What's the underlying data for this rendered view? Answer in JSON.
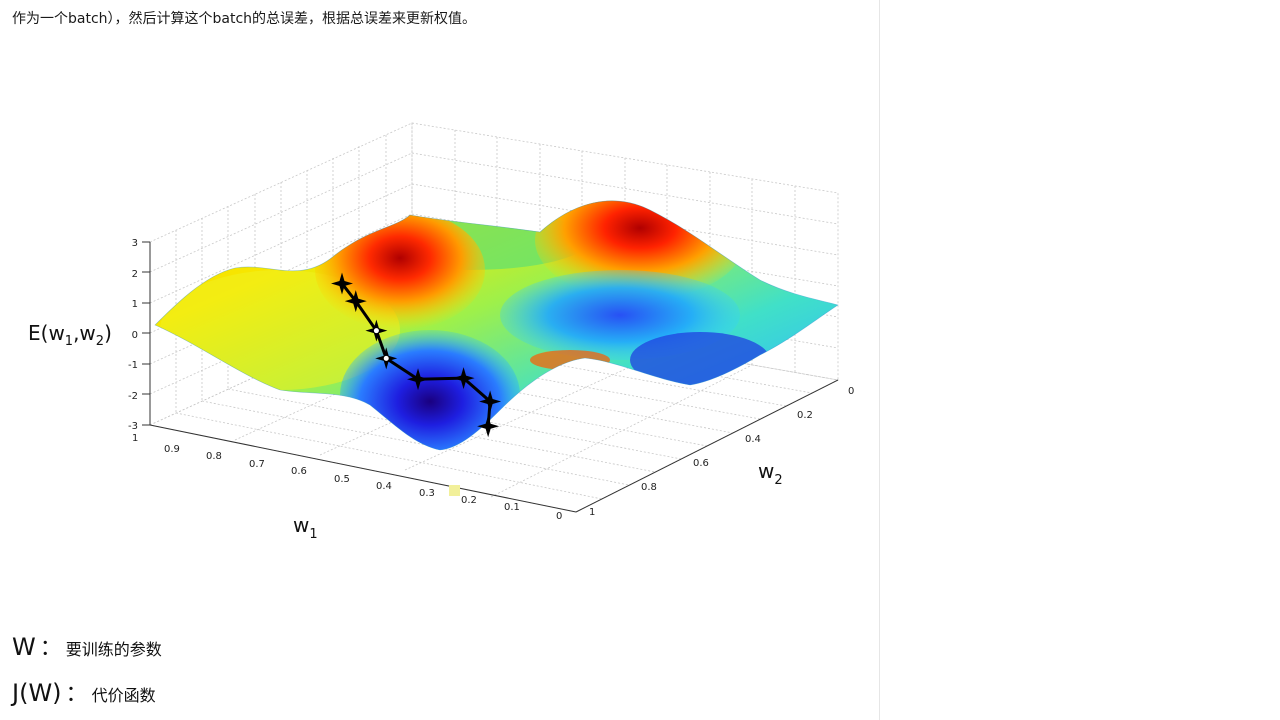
{
  "text": {
    "top_line": "作为一个batch），然后计算这个batch的总误差，根据总误差来更新权值。",
    "def_w_symbol": "W",
    "def_w_colon": "：",
    "def_w_desc": "要训练的参数",
    "def_j_symbol": "J(W)",
    "def_j_colon": "：",
    "def_j_desc": "代价函数"
  },
  "chart_data": {
    "type": "surface",
    "title": "",
    "zlabel": "E(w1,w2)",
    "xlabel": "w1",
    "ylabel": "w2",
    "zlim": [
      -3,
      3
    ],
    "xlim": [
      0,
      1
    ],
    "ylim": [
      0,
      1
    ],
    "z_ticks": [
      "3",
      "2",
      "1",
      "0",
      "-1",
      "-2",
      "-3"
    ],
    "w1_ticks": [
      "1",
      "0.9",
      "0.8",
      "0.7",
      "0.6",
      "0.5",
      "0.4",
      "0.3",
      "0.2",
      "0.1",
      "0"
    ],
    "w2_ticks": [
      "0",
      "0.2",
      "0.4",
      "0.6",
      "0.8",
      "1"
    ],
    "descent_path": [
      {
        "w1": 0.66,
        "w2": 0.18,
        "E": 1.9
      },
      {
        "w1": 0.64,
        "w2": 0.2,
        "E": 1.3
      },
      {
        "w1": 0.61,
        "w2": 0.23,
        "E": 0.3
      },
      {
        "w1": 0.55,
        "w2": 0.17,
        "E": -0.2
      },
      {
        "w1": 0.5,
        "w2": 0.21,
        "E": -0.9
      },
      {
        "w1": 0.43,
        "w2": 0.27,
        "E": -0.9
      },
      {
        "w1": 0.38,
        "w2": 0.29,
        "E": -1.6
      },
      {
        "w1": 0.36,
        "w2": 0.25,
        "E": -2.2
      }
    ],
    "colormap": "jet",
    "grid": true
  }
}
